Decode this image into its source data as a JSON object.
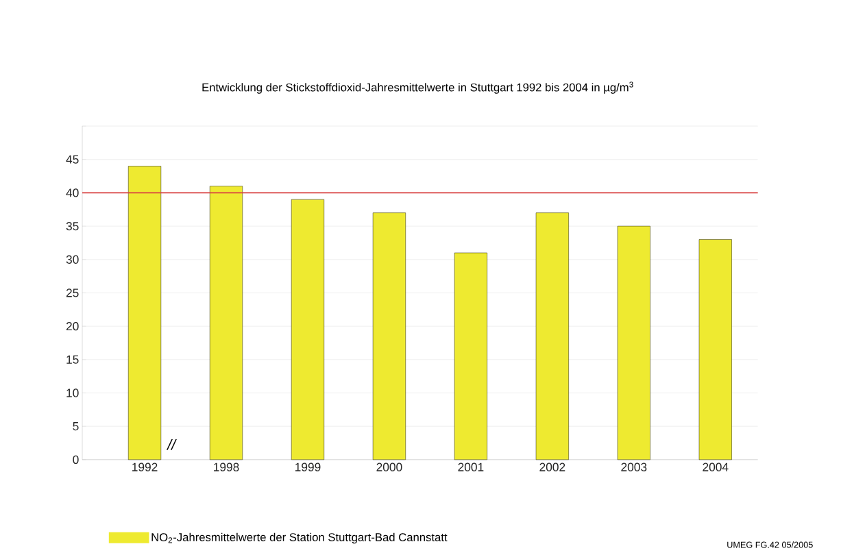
{
  "chart_data": {
    "type": "bar",
    "title": "Entwicklung der Stickstoffdioxid-Jahresmittelwerte in Stuttgart 1992 bis 2004 in µg/m$^{3}$",
    "categories": [
      "1992",
      "1998",
      "1999",
      "2000",
      "2001",
      "2002",
      "2003",
      "2004"
    ],
    "series": [
      {
        "name": "NO$_{2}$-Jahresmittelwerte der Station Stuttgart-Bad Cannstatt",
        "color": "#eeea30",
        "values": [
          44,
          41,
          39,
          37,
          31,
          37,
          35,
          33
        ]
      }
    ],
    "ylim": [
      0,
      50
    ],
    "yticks": [
      0,
      5,
      10,
      15,
      20,
      25,
      30,
      35,
      40,
      45,
      {
        "value": 50,
        "label": null
      }
    ],
    "ref_lines": [
      {
        "axis": "y",
        "value": 40,
        "color": "#d84040"
      }
    ],
    "annotations": [
      "//",
      "UMEG FG.42 05/2005"
    ],
    "grid": "y",
    "legend": "bottom left"
  }
}
